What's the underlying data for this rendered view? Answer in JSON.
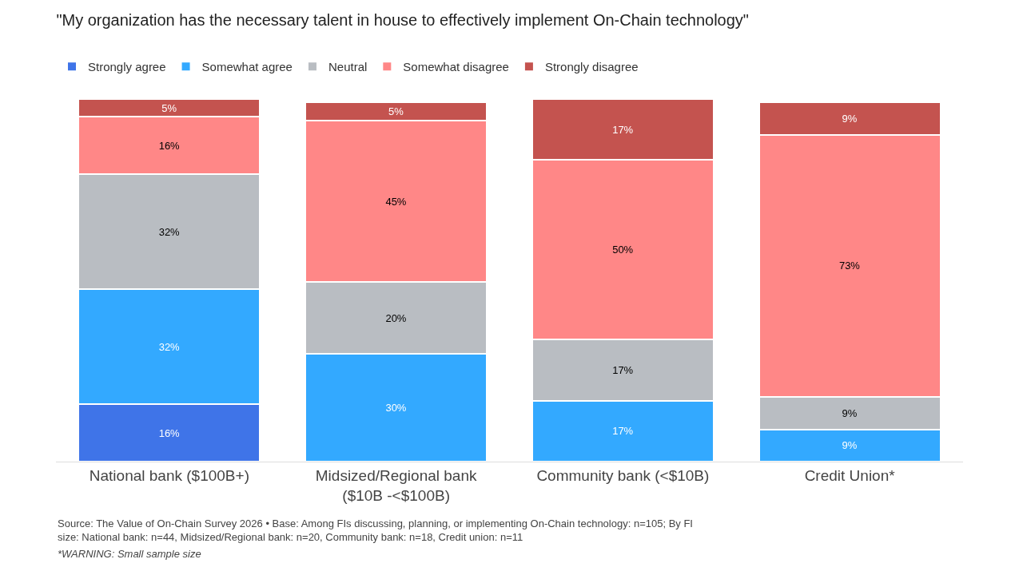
{
  "chart_data": {
    "type": "bar",
    "stacked": true,
    "title": "\"My organization has the necessary talent in house to effectively implement On-Chain technology\"",
    "categories": [
      "National bank ($100B+)",
      "Midsized/Regional bank ($10B -<$100B)",
      "Community bank (<$10B)",
      "Credit Union*"
    ],
    "series": [
      {
        "name": "Strongly agree",
        "color": "#3f74e8",
        "values": [
          16,
          null,
          null,
          null
        ],
        "value_labels": [
          "16%",
          null,
          null,
          null
        ]
      },
      {
        "name": "Somewhat agree",
        "color": "#33a9ff",
        "values": [
          32,
          30,
          17,
          9
        ],
        "value_labels": [
          "32%",
          "30%",
          "17%",
          "9%"
        ]
      },
      {
        "name": "Neutral",
        "color": "#b9bdc2",
        "values": [
          32,
          20,
          17,
          9
        ],
        "value_labels": [
          "32%",
          "20%",
          "17%",
          "9%"
        ]
      },
      {
        "name": "Somewhat disagree",
        "color": "#ff8787",
        "values": [
          16,
          45,
          50,
          73
        ],
        "value_labels": [
          "16%",
          "45%",
          "50%",
          "73%"
        ]
      },
      {
        "name": "Strongly disagree",
        "color": "#c4534f",
        "values": [
          5,
          5,
          17,
          9
        ],
        "value_labels": [
          "5%",
          "5%",
          "17%",
          "9%"
        ]
      }
    ],
    "legend": "top left",
    "annotations": [
      "Source: The Value of On-Chain Survey 2026 • Base: Among FIs discussing, planning, or implementing On-Chain technology: n=105; By FI size: National bank: n=44, Midsized/Regional bank: n=20, Community bank: n=18, Credit union: n=11",
      "*WARNING: Small sample size"
    ]
  }
}
